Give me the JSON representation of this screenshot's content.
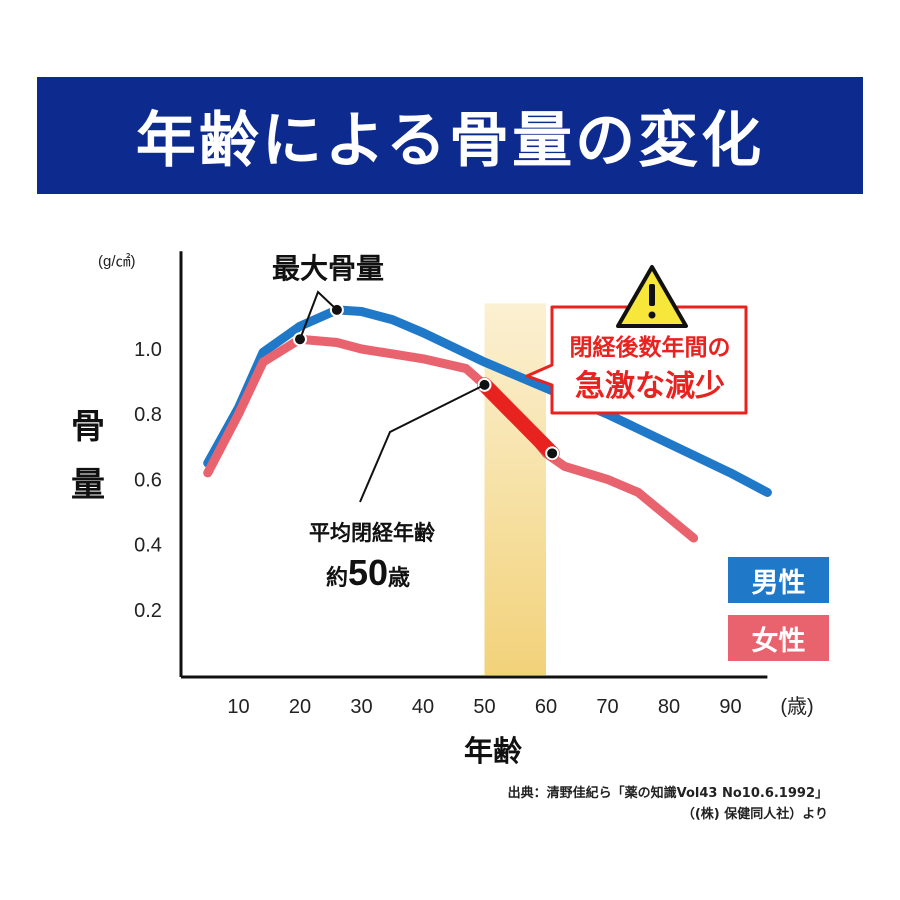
{
  "title": "年齢による骨量の変化",
  "y_unit": "(g/㎠)",
  "y_axis_label": "骨量",
  "x_axis_label": "年齢",
  "x_unit": "(歳)",
  "annotations": {
    "peak": "最大骨量",
    "warning_line1": "閉経後数年間の",
    "warning_line2": "急激な減少",
    "menopause_line1": "平均閉経年齢",
    "menopause_prefix": "約",
    "menopause_age": "50",
    "menopause_suffix": "歳",
    "warning_icon": "warning-triangle-icon"
  },
  "legend": {
    "male": "男性",
    "female": "女性"
  },
  "source": {
    "line1": "出典：清野佳紀ら「薬の知識Vol43 No10.6.1992」",
    "line2": "（(株) 保健同人社）より"
  },
  "colors": {
    "banner": "#0d2a8f",
    "male": "#1f78c8",
    "female": "#e8636e",
    "highlight": "#f2d27a",
    "emphasis": "#e8231f"
  },
  "chart_data": {
    "type": "line",
    "xlim": [
      0,
      100
    ],
    "ylim": [
      0,
      1.2
    ],
    "x_ticks": [
      10,
      20,
      30,
      40,
      50,
      60,
      70,
      80,
      90
    ],
    "y_ticks": [
      0.2,
      0.4,
      0.6,
      0.8,
      1.0
    ],
    "highlight_range": [
      50,
      60
    ],
    "series": [
      {
        "name": "男性",
        "x": [
          5,
          10,
          14,
          20,
          26,
          30,
          35,
          40,
          50,
          60,
          70,
          80,
          90,
          96
        ],
        "y": [
          0.65,
          0.82,
          0.99,
          1.07,
          1.12,
          1.115,
          1.09,
          1.05,
          0.96,
          0.88,
          0.8,
          0.71,
          0.62,
          0.56
        ],
        "marker_x": 26,
        "marker_y": 1.12
      },
      {
        "name": "女性",
        "x": [
          5,
          10,
          14,
          20,
          26,
          30,
          40,
          47,
          50,
          55,
          60,
          63,
          70,
          75,
          84
        ],
        "y": [
          0.62,
          0.8,
          0.96,
          1.03,
          1.02,
          1.0,
          0.97,
          0.94,
          0.89,
          0.8,
          0.68,
          0.64,
          0.6,
          0.56,
          0.42
        ],
        "marker_x": 20,
        "marker_y": 1.03
      }
    ],
    "emphasis_segment": {
      "series": "女性",
      "x_from": 50,
      "x_to": 61,
      "y_from": 0.89,
      "y_to": 0.68
    }
  }
}
